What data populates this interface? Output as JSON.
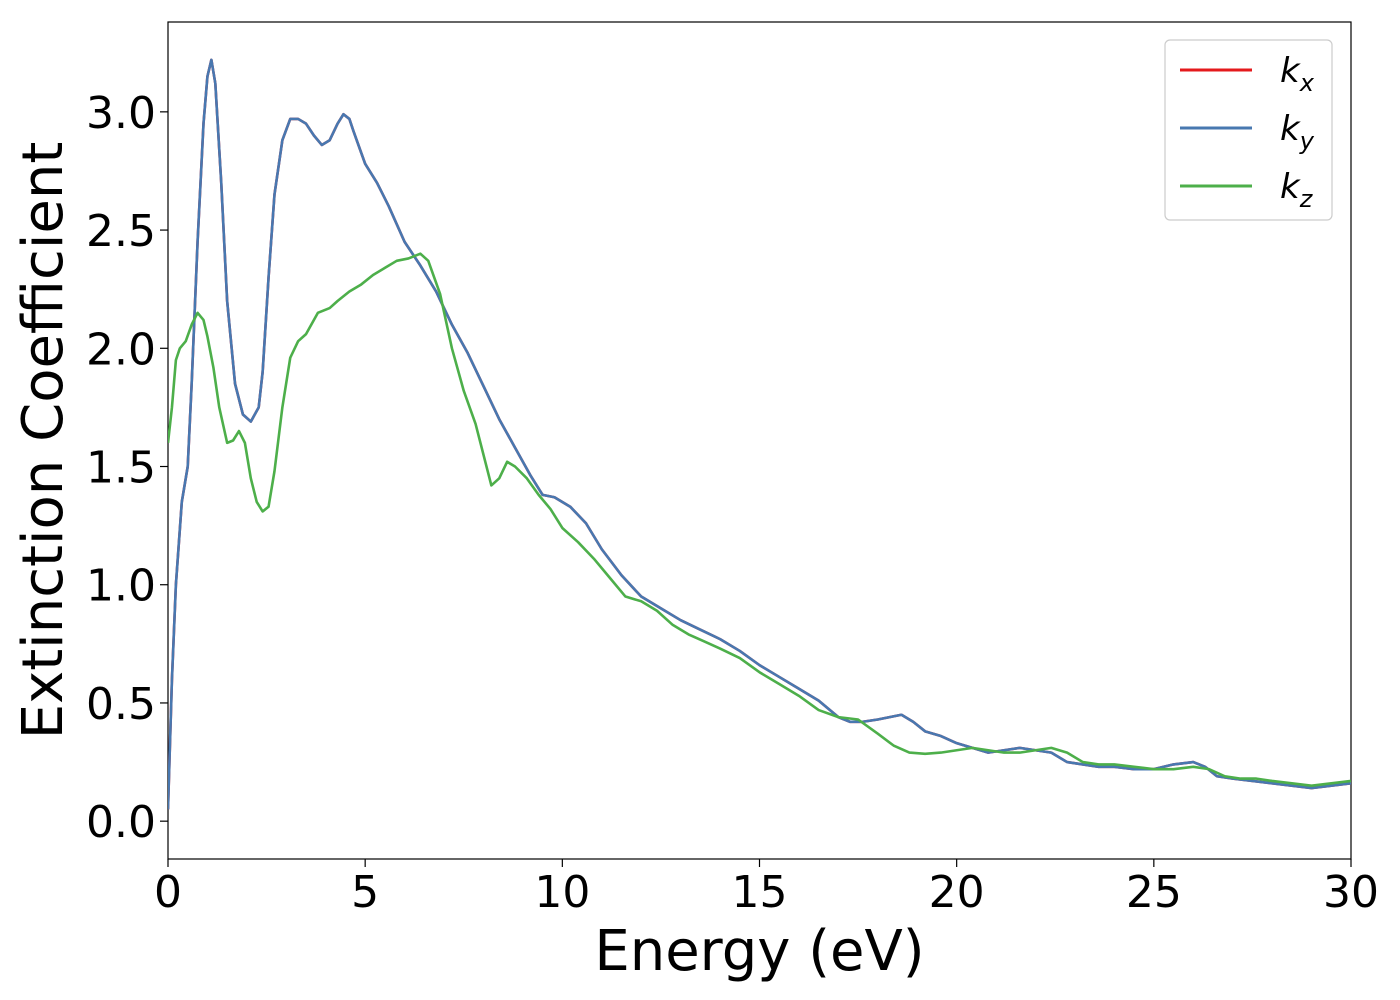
{
  "chart_data": {
    "type": "line",
    "title": "",
    "xlabel": "Energy (eV)",
    "ylabel": "Extinction Coefficient",
    "xlim": [
      0,
      30
    ],
    "ylim": [
      -0.16,
      3.38
    ],
    "xticks": [
      0,
      5,
      10,
      15,
      20,
      25,
      30
    ],
    "xtick_labels": [
      "0",
      "5",
      "10",
      "15",
      "20",
      "25",
      "30"
    ],
    "yticks": [
      0.0,
      0.5,
      1.0,
      1.5,
      2.0,
      2.5,
      3.0
    ],
    "ytick_labels": [
      "0.0",
      "0.5",
      "1.0",
      "1.5",
      "2.0",
      "2.5",
      "3.0"
    ],
    "grid": false,
    "legend_position": "top-right",
    "series": [
      {
        "name": "k_x",
        "legend_base": "k",
        "legend_sub": "x",
        "color": "#e41a1c",
        "x": [
          0,
          0.1,
          0.2,
          0.35,
          0.5,
          0.6,
          0.75,
          0.9,
          1.0,
          1.1,
          1.2,
          1.35,
          1.5,
          1.7,
          1.9,
          2.1,
          2.3,
          2.4,
          2.55,
          2.7,
          2.9,
          3.1,
          3.3,
          3.5,
          3.7,
          3.9,
          4.1,
          4.3,
          4.45,
          4.6,
          4.7,
          4.85,
          5.0,
          5.3,
          5.6,
          6.0,
          6.4,
          6.8,
          7.2,
          7.6,
          8.0,
          8.4,
          8.8,
          9.2,
          9.5,
          9.8,
          10.2,
          10.6,
          11.0,
          11.5,
          12.0,
          12.5,
          13.0,
          13.5,
          14.0,
          14.5,
          15.0,
          15.5,
          16.0,
          16.5,
          17.0,
          17.3,
          17.6,
          18.0,
          18.3,
          18.6,
          18.9,
          19.2,
          19.6,
          20.0,
          20.4,
          20.8,
          21.2,
          21.6,
          22.0,
          22.4,
          22.8,
          23.2,
          23.6,
          24.0,
          24.5,
          25.0,
          25.5,
          26.0,
          26.3,
          26.6,
          27.0,
          27.5,
          28.0,
          28.5,
          29.0,
          29.5,
          30.0
        ],
        "values": [
          0.05,
          0.6,
          1.0,
          1.35,
          1.5,
          1.85,
          2.45,
          2.95,
          3.15,
          3.22,
          3.12,
          2.7,
          2.2,
          1.85,
          1.72,
          1.69,
          1.75,
          1.9,
          2.3,
          2.65,
          2.88,
          2.97,
          2.97,
          2.95,
          2.9,
          2.86,
          2.88,
          2.95,
          2.99,
          2.97,
          2.92,
          2.85,
          2.78,
          2.7,
          2.6,
          2.45,
          2.35,
          2.24,
          2.1,
          1.98,
          1.84,
          1.7,
          1.58,
          1.46,
          1.38,
          1.37,
          1.33,
          1.26,
          1.15,
          1.04,
          0.95,
          0.9,
          0.85,
          0.81,
          0.77,
          0.72,
          0.66,
          0.61,
          0.56,
          0.51,
          0.44,
          0.42,
          0.42,
          0.43,
          0.44,
          0.45,
          0.42,
          0.38,
          0.36,
          0.33,
          0.31,
          0.29,
          0.3,
          0.31,
          0.3,
          0.29,
          0.25,
          0.24,
          0.23,
          0.23,
          0.22,
          0.22,
          0.24,
          0.25,
          0.23,
          0.19,
          0.18,
          0.17,
          0.16,
          0.15,
          0.14,
          0.15,
          0.16
        ]
      },
      {
        "name": "k_y",
        "legend_base": "k",
        "legend_sub": "y",
        "color": "#4878b0",
        "x": [
          0,
          0.1,
          0.2,
          0.35,
          0.5,
          0.6,
          0.75,
          0.9,
          1.0,
          1.1,
          1.2,
          1.35,
          1.5,
          1.7,
          1.9,
          2.1,
          2.3,
          2.4,
          2.55,
          2.7,
          2.9,
          3.1,
          3.3,
          3.5,
          3.7,
          3.9,
          4.1,
          4.3,
          4.45,
          4.6,
          4.7,
          4.85,
          5.0,
          5.3,
          5.6,
          6.0,
          6.4,
          6.8,
          7.2,
          7.6,
          8.0,
          8.4,
          8.8,
          9.2,
          9.5,
          9.8,
          10.2,
          10.6,
          11.0,
          11.5,
          12.0,
          12.5,
          13.0,
          13.5,
          14.0,
          14.5,
          15.0,
          15.5,
          16.0,
          16.5,
          17.0,
          17.3,
          17.6,
          18.0,
          18.3,
          18.6,
          18.9,
          19.2,
          19.6,
          20.0,
          20.4,
          20.8,
          21.2,
          21.6,
          22.0,
          22.4,
          22.8,
          23.2,
          23.6,
          24.0,
          24.5,
          25.0,
          25.5,
          26.0,
          26.3,
          26.6,
          27.0,
          27.5,
          28.0,
          28.5,
          29.0,
          29.5,
          30.0
        ],
        "values": [
          0.05,
          0.6,
          1.0,
          1.35,
          1.5,
          1.85,
          2.45,
          2.95,
          3.15,
          3.22,
          3.12,
          2.7,
          2.2,
          1.85,
          1.72,
          1.69,
          1.75,
          1.9,
          2.3,
          2.65,
          2.88,
          2.97,
          2.97,
          2.95,
          2.9,
          2.86,
          2.88,
          2.95,
          2.99,
          2.97,
          2.92,
          2.85,
          2.78,
          2.7,
          2.6,
          2.45,
          2.35,
          2.24,
          2.1,
          1.98,
          1.84,
          1.7,
          1.58,
          1.46,
          1.38,
          1.37,
          1.33,
          1.26,
          1.15,
          1.04,
          0.95,
          0.9,
          0.85,
          0.81,
          0.77,
          0.72,
          0.66,
          0.61,
          0.56,
          0.51,
          0.44,
          0.42,
          0.42,
          0.43,
          0.44,
          0.45,
          0.42,
          0.38,
          0.36,
          0.33,
          0.31,
          0.29,
          0.3,
          0.31,
          0.3,
          0.29,
          0.25,
          0.24,
          0.23,
          0.23,
          0.22,
          0.22,
          0.24,
          0.25,
          0.23,
          0.19,
          0.18,
          0.17,
          0.16,
          0.15,
          0.14,
          0.15,
          0.16
        ]
      },
      {
        "name": "k_z",
        "legend_base": "k",
        "legend_sub": "z",
        "color": "#4daf4a",
        "x": [
          0,
          0.1,
          0.2,
          0.3,
          0.45,
          0.6,
          0.75,
          0.9,
          1.0,
          1.15,
          1.3,
          1.5,
          1.65,
          1.8,
          1.95,
          2.1,
          2.25,
          2.4,
          2.55,
          2.7,
          2.9,
          3.1,
          3.3,
          3.5,
          3.8,
          4.1,
          4.3,
          4.6,
          4.9,
          5.2,
          5.5,
          5.8,
          6.1,
          6.4,
          6.6,
          6.9,
          7.2,
          7.5,
          7.8,
          8.0,
          8.2,
          8.4,
          8.6,
          8.8,
          9.1,
          9.4,
          9.7,
          10.0,
          10.4,
          10.8,
          11.2,
          11.6,
          12.0,
          12.4,
          12.8,
          13.2,
          13.6,
          14.0,
          14.5,
          15.0,
          15.5,
          16.0,
          16.5,
          17.0,
          17.5,
          18.0,
          18.4,
          18.8,
          19.2,
          19.6,
          20.0,
          20.4,
          20.8,
          21.2,
          21.6,
          22.0,
          22.4,
          22.8,
          23.2,
          23.6,
          24.0,
          24.5,
          25.0,
          25.5,
          26.0,
          26.4,
          26.8,
          27.2,
          27.6,
          28.0,
          28.5,
          29.0,
          29.5,
          30.0
        ],
        "values": [
          1.6,
          1.75,
          1.95,
          2.0,
          2.03,
          2.1,
          2.15,
          2.12,
          2.05,
          1.92,
          1.75,
          1.6,
          1.61,
          1.65,
          1.6,
          1.45,
          1.35,
          1.31,
          1.33,
          1.48,
          1.75,
          1.96,
          2.03,
          2.06,
          2.15,
          2.17,
          2.2,
          2.24,
          2.27,
          2.31,
          2.34,
          2.37,
          2.38,
          2.4,
          2.37,
          2.23,
          2.0,
          1.82,
          1.68,
          1.55,
          1.42,
          1.45,
          1.52,
          1.5,
          1.45,
          1.38,
          1.32,
          1.24,
          1.18,
          1.11,
          1.03,
          0.95,
          0.93,
          0.89,
          0.83,
          0.79,
          0.76,
          0.73,
          0.69,
          0.63,
          0.58,
          0.53,
          0.47,
          0.44,
          0.43,
          0.37,
          0.32,
          0.29,
          0.285,
          0.29,
          0.3,
          0.31,
          0.3,
          0.29,
          0.29,
          0.3,
          0.31,
          0.29,
          0.25,
          0.24,
          0.24,
          0.23,
          0.22,
          0.22,
          0.23,
          0.22,
          0.19,
          0.18,
          0.18,
          0.17,
          0.16,
          0.15,
          0.16,
          0.17
        ]
      }
    ]
  }
}
